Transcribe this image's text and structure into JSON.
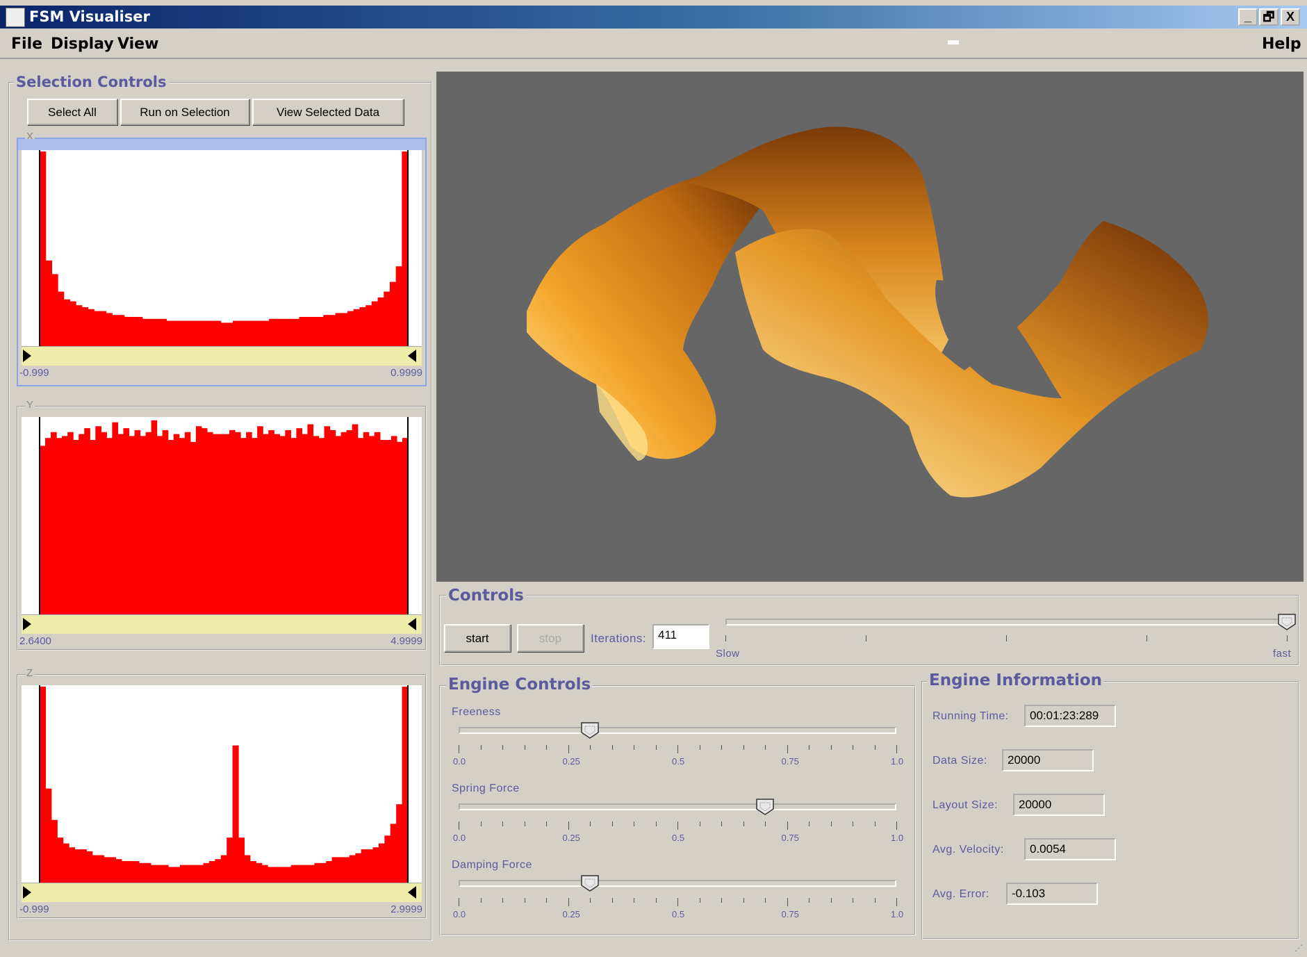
{
  "window": {
    "title": "FSM Visualiser",
    "controls": {
      "minimize": "_",
      "restore": "🗗",
      "close": "X"
    }
  },
  "menubar": {
    "items": [
      "File",
      "Display",
      "View"
    ],
    "help": "Help"
  },
  "selection": {
    "legend": "Selection Controls",
    "buttons": {
      "select_all": "Select All",
      "run_on_selection": "Run on Selection",
      "view_selected": "View Selected Data"
    }
  },
  "histograms": [
    {
      "label": "X",
      "min": "-0.999",
      "max": "0.9999",
      "selected": true,
      "values": [
        100,
        44,
        37,
        28,
        24,
        23,
        21,
        20,
        19,
        18,
        18,
        17,
        16,
        16,
        15,
        15,
        15,
        14,
        14,
        14,
        14,
        13,
        13,
        13,
        13,
        13,
        13,
        13,
        13,
        13,
        12,
        12,
        13,
        13,
        13,
        13,
        13,
        13,
        14,
        14,
        14,
        14,
        14,
        15,
        15,
        15,
        15,
        16,
        16,
        17,
        17,
        18,
        19,
        20,
        21,
        23,
        25,
        28,
        33,
        41,
        100
      ]
    },
    {
      "label": "Y",
      "min": "2.6400",
      "max": "4.9999",
      "selected": false,
      "values": [
        86,
        90,
        93,
        90,
        91,
        93,
        89,
        92,
        95,
        89,
        96,
        93,
        90,
        98,
        92,
        95,
        91,
        94,
        91,
        93,
        99,
        91,
        94,
        89,
        92,
        90,
        93,
        88,
        96,
        95,
        93,
        92,
        92,
        92,
        94,
        93,
        90,
        93,
        90,
        96,
        92,
        94,
        92,
        91,
        94,
        90,
        95,
        92,
        97,
        91,
        90,
        96,
        94,
        91,
        93,
        94,
        97,
        90,
        93,
        91,
        93,
        89,
        89,
        91,
        88,
        90
      ]
    },
    {
      "label": "Z",
      "min": "-0.999",
      "max": "2.9999",
      "selected": false,
      "values": [
        100,
        48,
        32,
        23,
        20,
        18,
        17,
        17,
        16,
        14,
        14,
        13,
        13,
        12,
        11,
        11,
        11,
        10,
        10,
        9,
        9,
        9,
        8,
        8,
        9,
        9,
        9,
        9,
        10,
        11,
        12,
        14,
        23,
        70,
        23,
        14,
        11,
        10,
        9,
        8,
        8,
        8,
        8,
        9,
        9,
        9,
        9,
        10,
        10,
        11,
        13,
        13,
        13,
        14,
        15,
        17,
        17,
        18,
        20,
        24,
        30,
        40,
        100
      ]
    }
  ],
  "controls": {
    "legend": "Controls",
    "start": "start",
    "stop": "stop",
    "iterations_label": "Iterations:",
    "iterations_value": "411",
    "speed_slow": "Slow",
    "speed_fast": "fast",
    "speed_value": 1.0
  },
  "engine_controls": {
    "legend": "Engine Controls",
    "sliders": [
      {
        "label": "Freeness",
        "value": 0.3
      },
      {
        "label": "Spring Force",
        "value": 0.7
      },
      {
        "label": "Damping Force",
        "value": 0.3
      }
    ],
    "tick_labels": [
      "0.0",
      "0.25",
      "0.5",
      "0.75",
      "1.0"
    ]
  },
  "engine_info": {
    "legend": "Engine Information",
    "running_time_label": "Running Time:",
    "running_time": "00:01:23:289",
    "data_size_label": "Data Size:",
    "data_size": "20000",
    "layout_size_label": "Layout Size:",
    "layout_size": "20000",
    "avg_velocity_label": "Avg. Velocity:",
    "avg_velocity": "0.0054",
    "avg_error_label": "Avg. Error:",
    "avg_error": "-0.103"
  },
  "colors": {
    "histogram": "#ff0000",
    "viewport_bg": "#666666",
    "legend_text": "#5a5a9c"
  }
}
